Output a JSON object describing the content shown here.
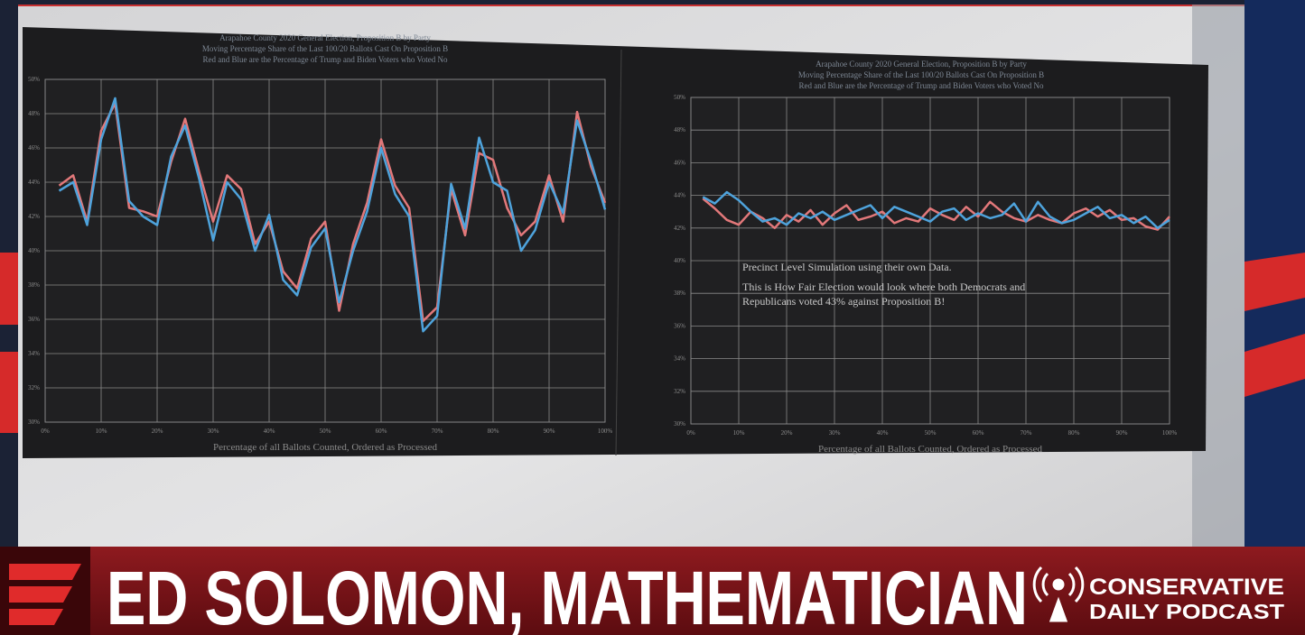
{
  "chart_data": [
    {
      "type": "line",
      "title": "Arapahoe County 2020 General Election, Proposition B by Party",
      "subtitles": [
        "Moving Percentage Share of the Last 100/20 Ballots Cast On Proposition B",
        "Red and Blue are the Percentage of Trump and Biden Voters who Voted No"
      ],
      "x_label": "Percentage of all Ballots Counted, Ordered as Processed",
      "x": [
        2.5,
        5,
        7.5,
        10,
        12.5,
        15,
        17.5,
        20,
        22.5,
        25,
        27.5,
        30,
        32.5,
        35,
        37.5,
        40,
        42.5,
        45,
        47.5,
        50,
        52.5,
        55,
        57.5,
        60,
        62.5,
        65,
        67.5,
        70,
        72.5,
        75,
        77.5,
        80,
        82.5,
        85,
        87.5,
        90,
        92.5,
        95,
        97.5,
        100
      ],
      "series": [
        {
          "color": "#e2787a",
          "values": [
            43.8,
            44.4,
            41.7,
            47.0,
            48.6,
            42.5,
            42.3,
            42.0,
            45.2,
            47.7,
            44.6,
            41.7,
            44.4,
            43.6,
            40.4,
            41.7,
            38.8,
            37.8,
            40.7,
            41.7,
            36.5,
            40.4,
            42.8,
            46.5,
            43.8,
            42.5,
            35.9,
            36.7,
            43.6,
            40.9,
            45.7,
            45.3,
            42.5,
            40.9,
            41.7,
            44.4,
            41.7,
            48.1,
            44.9,
            42.8
          ]
        },
        {
          "color": "#4ea3dc",
          "values": [
            43.5,
            44.0,
            41.5,
            46.5,
            48.9,
            42.9,
            42.0,
            41.5,
            45.5,
            47.3,
            44.2,
            40.6,
            44.0,
            43.0,
            40.0,
            42.1,
            38.3,
            37.4,
            40.2,
            41.3,
            37.0,
            40.0,
            42.3,
            46.0,
            43.3,
            42.0,
            35.3,
            36.2,
            43.9,
            41.3,
            46.6,
            44.0,
            43.5,
            40.0,
            41.2,
            44.0,
            42.2,
            47.6,
            45.2,
            42.4
          ]
        }
      ],
      "xlim": [
        0,
        100
      ],
      "xticks": [
        {
          "value": 0,
          "label": "0%"
        },
        {
          "value": 10,
          "label": "10%"
        },
        {
          "value": 20,
          "label": "20%"
        },
        {
          "value": 30,
          "label": "30%"
        },
        {
          "value": 40,
          "label": "40%"
        },
        {
          "value": 50,
          "label": "50%"
        },
        {
          "value": 60,
          "label": "60%"
        },
        {
          "value": 70,
          "label": "70%"
        },
        {
          "value": 80,
          "label": "80%"
        },
        {
          "value": 90,
          "label": "90%"
        },
        {
          "value": 100,
          "label": "100%"
        }
      ],
      "ylim": [
        30,
        50
      ],
      "yticks": [
        {
          "value": 30,
          "label": "30%"
        },
        {
          "value": 32,
          "label": "32%"
        },
        {
          "value": 34,
          "label": "34%"
        },
        {
          "value": 36,
          "label": "36%"
        },
        {
          "value": 38,
          "label": "38%"
        },
        {
          "value": 40,
          "label": "40%"
        },
        {
          "value": 42,
          "label": "42%"
        },
        {
          "value": 44,
          "label": "44%"
        },
        {
          "value": 46,
          "label": "46%"
        },
        {
          "value": 48,
          "label": "48%"
        },
        {
          "value": 50,
          "label": "50%"
        }
      ],
      "grid": true
    },
    {
      "type": "line",
      "title": "Arapahoe County 2020 General Election, Proposition B by Party",
      "subtitles": [
        "Moving Percentage Share of the Last 100/20 Ballots Cast On Proposition B",
        "Red and Blue are the Percentage of Trump and Biden Voters who Voted No"
      ],
      "x_label": "Percentage of all Ballots Counted, Ordered as Processed",
      "annotations": [
        "Precinct Level Simulation using their own Data.",
        "This is How  Fair Election would look where both Democrats and",
        "Republicans voted 43% against Proposition B!"
      ],
      "x": [
        2.5,
        5,
        7.5,
        10,
        12.5,
        15,
        17.5,
        20,
        22.5,
        25,
        27.5,
        30,
        32.5,
        35,
        37.5,
        40,
        42.5,
        45,
        47.5,
        50,
        52.5,
        55,
        57.5,
        60,
        62.5,
        65,
        67.5,
        70,
        72.5,
        75,
        77.5,
        80,
        82.5,
        85,
        87.5,
        90,
        92.5,
        95,
        97.5,
        100
      ],
      "series": [
        {
          "color": "#e2787a",
          "values": [
            43.8,
            43.2,
            42.5,
            42.2,
            43.0,
            42.6,
            42.0,
            42.8,
            42.4,
            43.1,
            42.2,
            42.9,
            43.4,
            42.5,
            42.7,
            43.0,
            42.3,
            42.6,
            42.4,
            43.2,
            42.8,
            42.5,
            43.3,
            42.7,
            43.6,
            43.0,
            42.6,
            42.4,
            42.8,
            42.5,
            42.3,
            42.9,
            43.2,
            42.7,
            43.1,
            42.5,
            42.6,
            42.1,
            41.9,
            42.7
          ]
        },
        {
          "color": "#4ea3dc",
          "values": [
            43.9,
            43.5,
            44.2,
            43.7,
            43.0,
            42.4,
            42.6,
            42.2,
            42.9,
            42.6,
            43.0,
            42.5,
            42.8,
            43.1,
            43.4,
            42.6,
            43.3,
            43.0,
            42.7,
            42.4,
            43.0,
            43.2,
            42.5,
            42.9,
            42.6,
            42.8,
            43.5,
            42.4,
            43.6,
            42.7,
            42.3,
            42.5,
            42.9,
            43.3,
            42.6,
            42.8,
            42.3,
            42.7,
            42.0,
            42.5
          ]
        }
      ],
      "xlim": [
        0,
        100
      ],
      "xticks": [
        {
          "value": 0,
          "label": "0%"
        },
        {
          "value": 10,
          "label": "10%"
        },
        {
          "value": 20,
          "label": "20%"
        },
        {
          "value": 30,
          "label": "30%"
        },
        {
          "value": 40,
          "label": "40%"
        },
        {
          "value": 50,
          "label": "50%"
        },
        {
          "value": 60,
          "label": "60%"
        },
        {
          "value": 70,
          "label": "70%"
        },
        {
          "value": 80,
          "label": "80%"
        },
        {
          "value": 90,
          "label": "90%"
        },
        {
          "value": 100,
          "label": "100%"
        }
      ],
      "ylim": [
        30,
        50
      ],
      "yticks": [
        {
          "value": 30,
          "label": "30%"
        },
        {
          "value": 32,
          "label": "32%"
        },
        {
          "value": 34,
          "label": "34%"
        },
        {
          "value": 36,
          "label": "36%"
        },
        {
          "value": 38,
          "label": "38%"
        },
        {
          "value": 40,
          "label": "40%"
        },
        {
          "value": 42,
          "label": "42%"
        },
        {
          "value": 44,
          "label": "44%"
        },
        {
          "value": 46,
          "label": "46%"
        },
        {
          "value": 48,
          "label": "48%"
        },
        {
          "value": 50,
          "label": "50%"
        }
      ],
      "grid": true
    }
  ],
  "banner": {
    "headline": "ED SOLOMON, MATHEMATICIAN",
    "brand_top": "CONSERVATIVE",
    "brand_bottom": "DAILY PODCAST"
  }
}
